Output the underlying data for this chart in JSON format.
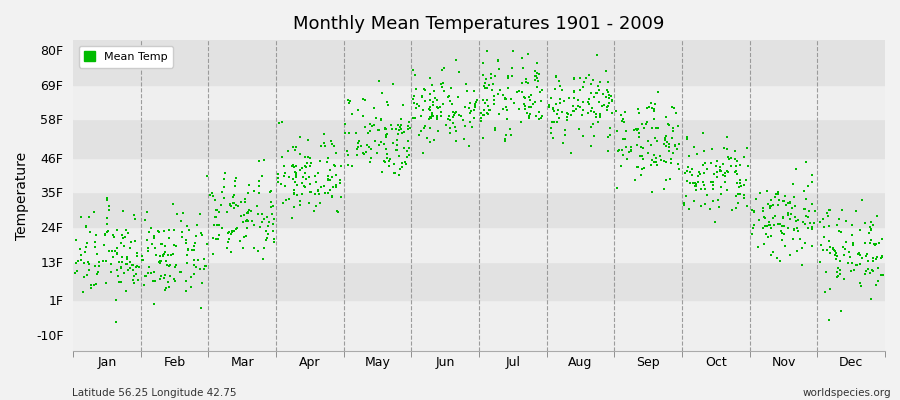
{
  "title": "Monthly Mean Temperatures 1901 - 2009",
  "ylabel": "Temperature",
  "yticks": [
    -10,
    1,
    13,
    24,
    35,
    46,
    58,
    69,
    80
  ],
  "ytick_labels": [
    "-10F",
    "1F",
    "13F",
    "24F",
    "35F",
    "46F",
    "58F",
    "69F",
    "80F"
  ],
  "ylim": [
    -15,
    83
  ],
  "months": [
    "Jan",
    "Feb",
    "Mar",
    "Apr",
    "May",
    "Jun",
    "Jul",
    "Aug",
    "Sep",
    "Oct",
    "Nov",
    "Dec"
  ],
  "n_years": 109,
  "dot_color": "#00bb00",
  "dot_size": 3,
  "background_color": "#f2f2f2",
  "plot_bg_light": "#efefef",
  "plot_bg_dark": "#e2e2e2",
  "legend_label": "Mean Temp",
  "subtitle_left": "Latitude 56.25 Longitude 42.75",
  "subtitle_right": "worldspecies.org",
  "mean_temps_F": {
    "Jan": 15.0,
    "Feb": 14.5,
    "Mar": 27.0,
    "Apr": 40.0,
    "May": 53.0,
    "Jun": 62.0,
    "Jul": 65.0,
    "Aug": 62.0,
    "Sep": 51.0,
    "Oct": 39.0,
    "Nov": 27.0,
    "Dec": 17.0
  },
  "spread_F": {
    "Jan": 7.0,
    "Feb": 6.5,
    "Mar": 7.0,
    "Apr": 6.5,
    "May": 7.0,
    "Jun": 6.0,
    "Jul": 5.5,
    "Aug": 5.5,
    "Sep": 6.5,
    "Oct": 6.5,
    "Nov": 7.0,
    "Dec": 7.0
  }
}
